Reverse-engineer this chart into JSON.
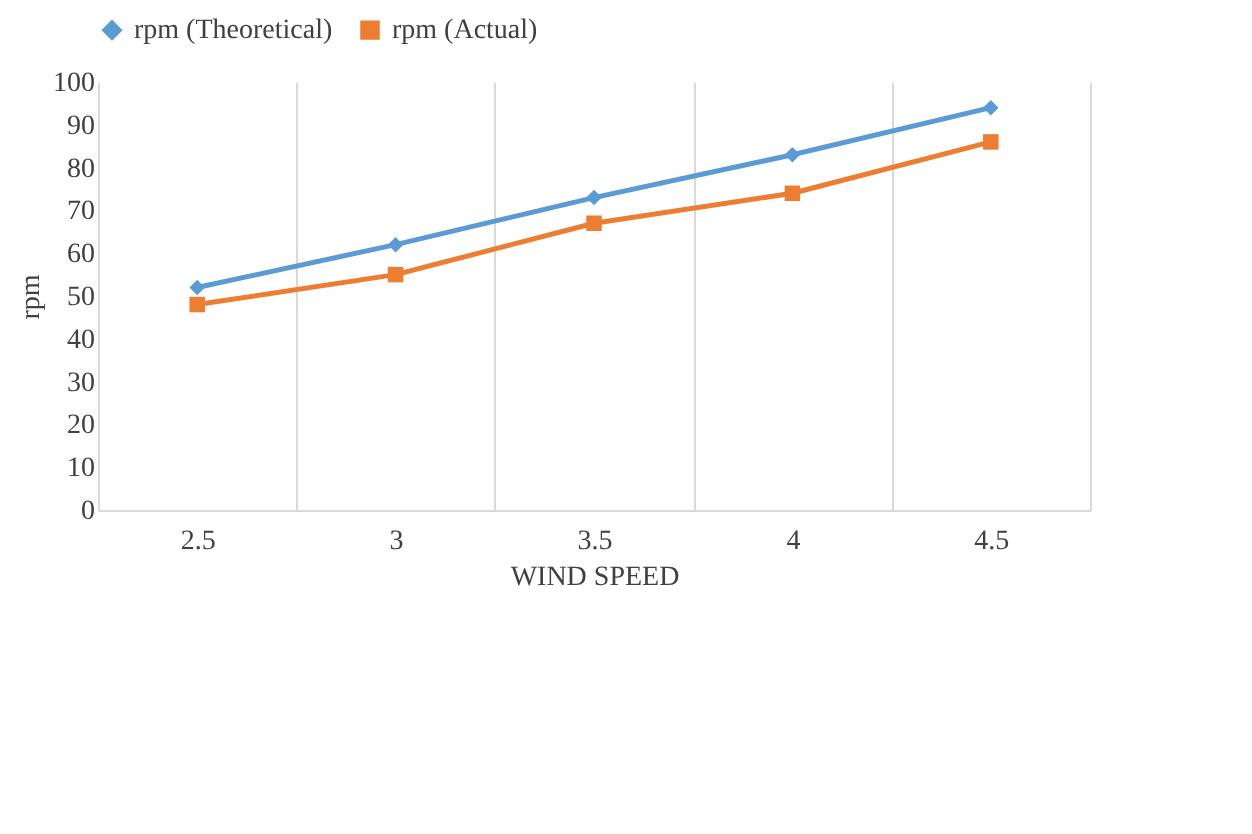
{
  "chart_data": {
    "type": "line",
    "xlabel": "WIND SPEED",
    "ylabel": "rpm",
    "categories": [
      "2.5",
      "3",
      "3.5",
      "4",
      "4.5"
    ],
    "series": [
      {
        "name": "rpm (Theoretical)",
        "color": "#5b9bd5",
        "marker": "diamond",
        "values": [
          52,
          62,
          73,
          83,
          94
        ]
      },
      {
        "name": "rpm (Actual)",
        "color": "#ed7d31",
        "marker": "square",
        "values": [
          48,
          55,
          67,
          74,
          86
        ]
      }
    ],
    "ylim": [
      0,
      100
    ],
    "yticks": [
      0,
      10,
      20,
      30,
      40,
      50,
      60,
      70,
      80,
      90,
      100
    ],
    "grid": "x",
    "legend": "top",
    "line_style": "solid"
  }
}
